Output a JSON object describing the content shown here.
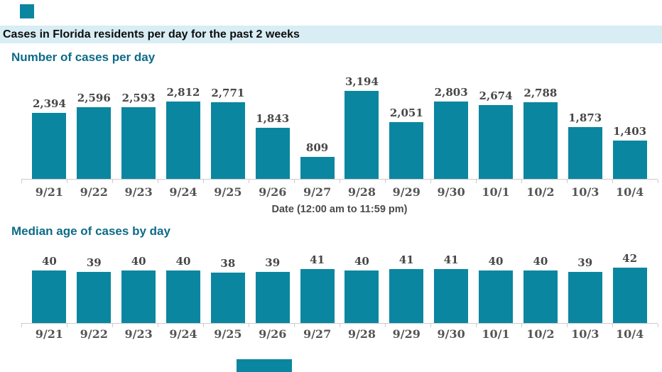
{
  "page": {
    "banner_title": "Cases in Florida residents per day for the past 2 weeks"
  },
  "colors": {
    "bar_teal": "#0b86a0",
    "heading_teal": "#0d6b88",
    "banner_bg": "#d8edf4",
    "axis_gray": "#cccccc"
  },
  "chart_data": [
    {
      "type": "bar",
      "title": "Number of cases per day",
      "categories": [
        "9/21",
        "9/22",
        "9/23",
        "9/24",
        "9/25",
        "9/26",
        "9/27",
        "9/28",
        "9/29",
        "9/30",
        "10/1",
        "10/2",
        "10/3",
        "10/4"
      ],
      "values": [
        2394,
        2596,
        2593,
        2812,
        2771,
        1843,
        809,
        3194,
        2051,
        2803,
        2674,
        2788,
        1873,
        1403
      ],
      "value_labels": [
        "2,394",
        "2,596",
        "2,593",
        "2,812",
        "2,771",
        "1,843",
        "809",
        "3,194",
        "2,051",
        "2,803",
        "2,674",
        "2,788",
        "1,873",
        "1,403"
      ],
      "xlabel": "Date (12:00 am to 11:59 pm)",
      "ylabel": "",
      "ylim": [
        0,
        3194
      ],
      "grid": false,
      "value_labels_position": "above-bars"
    },
    {
      "type": "bar",
      "title": "Median age of cases by day",
      "categories": [
        "9/21",
        "9/22",
        "9/23",
        "9/24",
        "9/25",
        "9/26",
        "9/27",
        "9/28",
        "9/29",
        "9/30",
        "10/1",
        "10/2",
        "10/3",
        "10/4"
      ],
      "values": [
        40,
        39,
        40,
        40,
        38,
        39,
        41,
        40,
        41,
        41,
        40,
        40,
        39,
        42
      ],
      "value_labels": [
        "40",
        "39",
        "40",
        "40",
        "38",
        "39",
        "41",
        "40",
        "41",
        "41",
        "40",
        "40",
        "39",
        "42"
      ],
      "xlabel": "",
      "ylabel": "",
      "ylim": [
        0,
        42
      ],
      "grid": false,
      "value_labels_position": "above-bars"
    }
  ]
}
